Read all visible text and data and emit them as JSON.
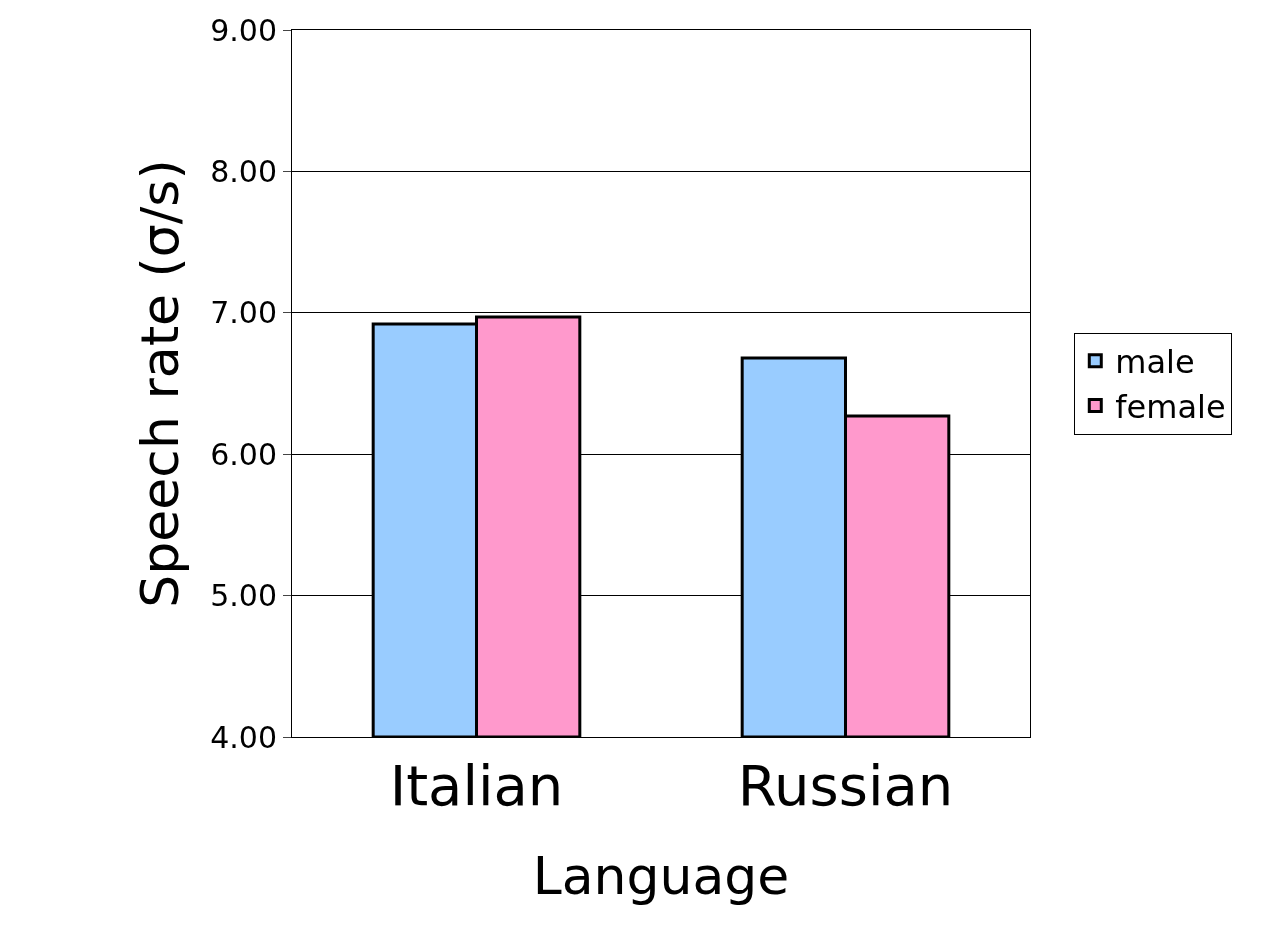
{
  "chart_data": {
    "type": "bar",
    "xlabel": "Language",
    "ylabel": "Speech rate (σ/s)",
    "categories": [
      "Italian",
      "Russian"
    ],
    "series": [
      {
        "name": "male",
        "color": "#99ccff",
        "values": [
          6.92,
          6.68
        ]
      },
      {
        "name": "female",
        "color": "#ff99cc",
        "values": [
          6.97,
          6.27
        ]
      }
    ],
    "ylim": [
      4,
      9
    ],
    "yticks": [
      {
        "value": 4,
        "label": "4.00"
      },
      {
        "value": 5,
        "label": "5.00"
      },
      {
        "value": 6,
        "label": "6.00"
      },
      {
        "value": 7,
        "label": "7.00"
      },
      {
        "value": 8,
        "label": "8.00"
      },
      {
        "value": 9,
        "label": "9.00"
      }
    ],
    "grid": "y",
    "legend": "right"
  }
}
